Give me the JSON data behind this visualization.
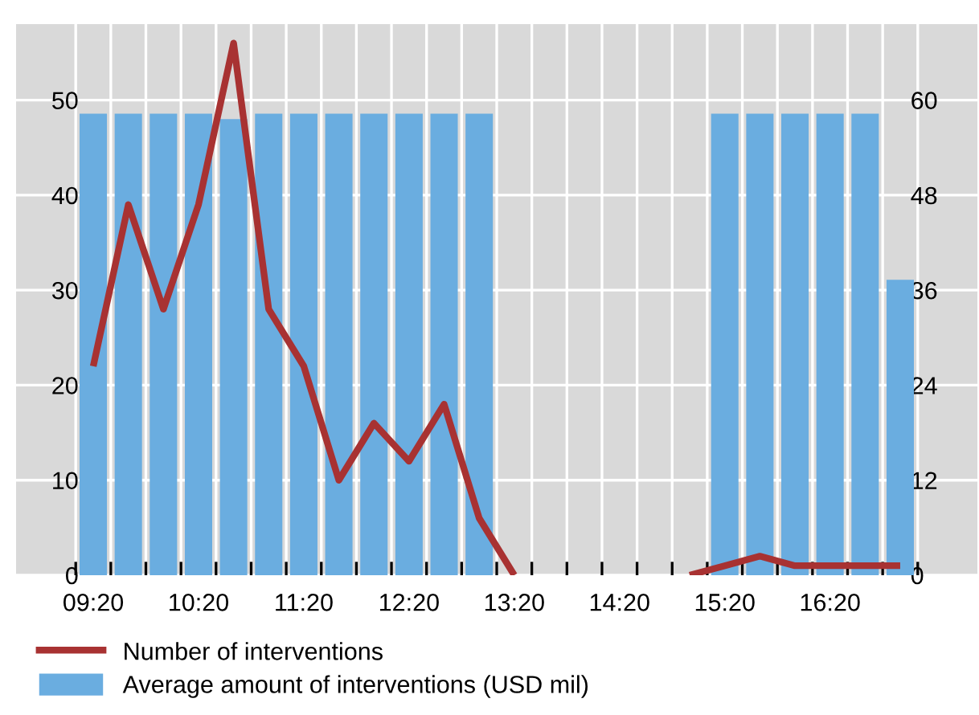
{
  "chart_data": {
    "type": "bar",
    "categories": [
      "09:20",
      null,
      null,
      "10:20",
      null,
      null,
      "11:20",
      null,
      null,
      "12:20",
      null,
      null,
      "13:20",
      null,
      null,
      "14:20",
      null,
      null,
      "15:20",
      null,
      null,
      "16:20",
      null,
      null
    ],
    "series": [
      {
        "name": "Number of interventions",
        "type": "line",
        "color": "#a83232",
        "values": [
          22,
          39,
          28,
          39,
          56,
          28,
          22,
          10,
          16,
          12,
          18,
          6,
          0,
          null,
          null,
          null,
          null,
          0,
          1,
          2,
          1,
          1,
          1,
          1
        ]
      },
      {
        "name": "Average amount of interventions (USD mil)",
        "axis": "y2",
        "color": "#6aade0",
        "values": [
          58.3,
          58.3,
          58.3,
          58.3,
          57.6,
          58.3,
          58.3,
          58.3,
          58.3,
          58.3,
          58.3,
          58.3,
          null,
          null,
          null,
          null,
          null,
          null,
          58.3,
          58.3,
          58.3,
          58.3,
          58.3,
          37.3
        ]
      }
    ],
    "ylim": [
      0,
      58
    ],
    "yticks": [
      0,
      10,
      20,
      30,
      40,
      50
    ],
    "y2lim": [
      0,
      69.6
    ],
    "y2ticks": [
      0,
      12,
      24,
      36,
      48,
      60
    ],
    "grid": true,
    "legend": "bottom left",
    "marker": "none",
    "line_style": "solid"
  }
}
